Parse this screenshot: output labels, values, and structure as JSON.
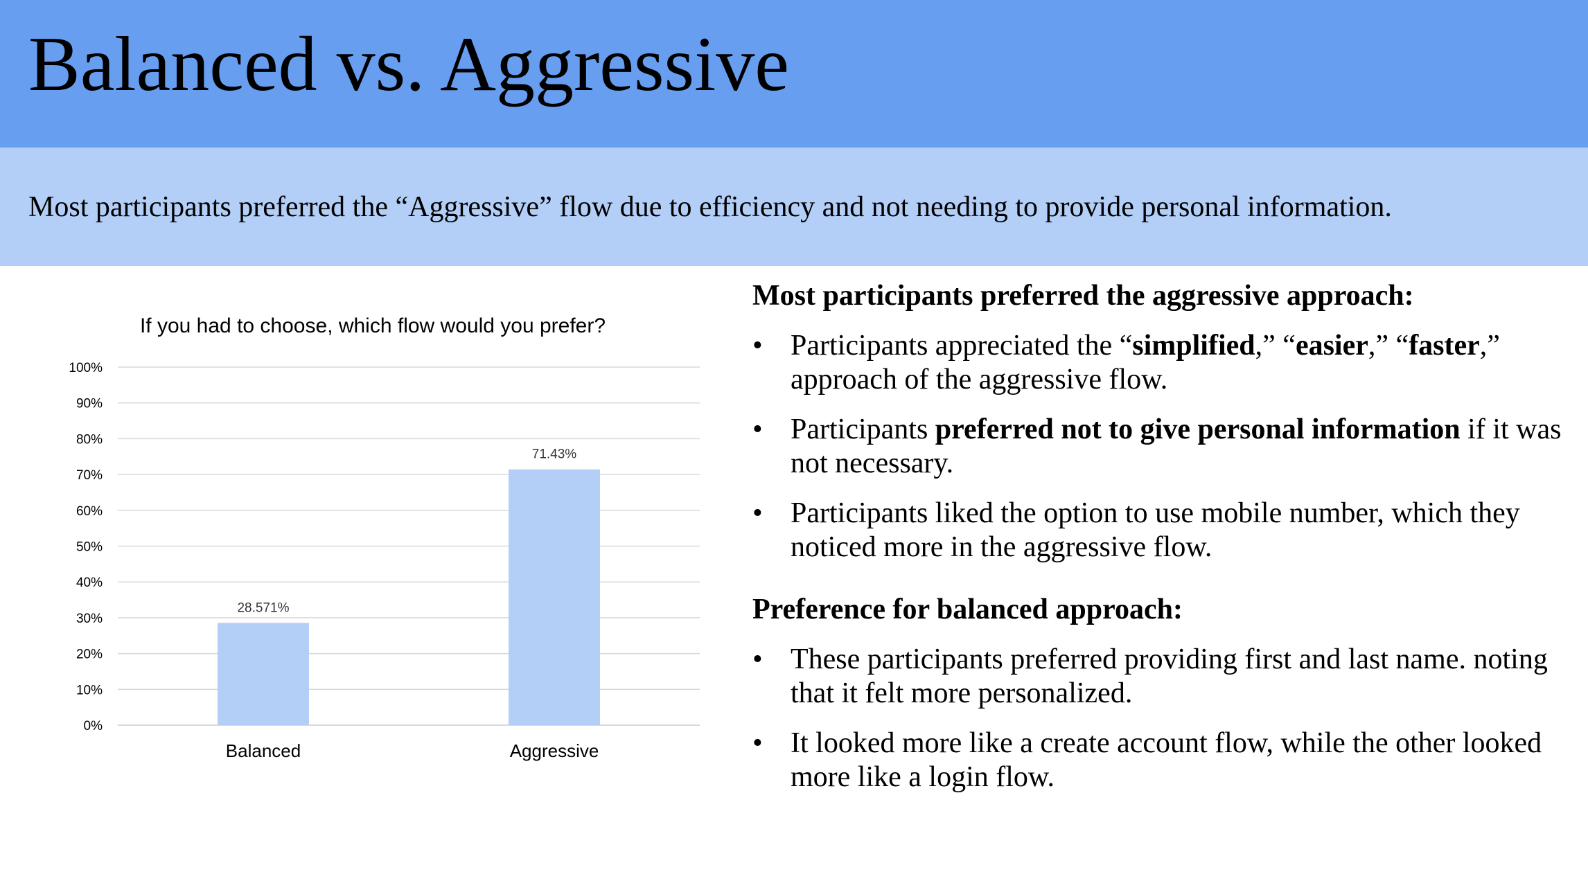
{
  "slide": {
    "title": "Balanced vs. Aggressive",
    "subtitle": "Most participants preferred the “Aggressive” flow due to efficiency and not needing to provide personal information.",
    "colors": {
      "title_band": "#679ef0",
      "subtitle_band": "#b3cff7",
      "bar": "#b3cff7",
      "gridline": "#d9d9d9"
    }
  },
  "findings": {
    "aggressive": {
      "heading": "Most participants preferred the aggressive approach:",
      "bullets": [
        [
          {
            "text": "Participants appreciated the “"
          },
          {
            "text": "simplified",
            "bold": true
          },
          {
            "text": ",” “"
          },
          {
            "text": "easier",
            "bold": true
          },
          {
            "text": ",” “"
          },
          {
            "text": "faster",
            "bold": true
          },
          {
            "text": ",” approach of the aggressive flow."
          }
        ],
        [
          {
            "text": "Participants "
          },
          {
            "text": "preferred not to give personal information",
            "bold": true
          },
          {
            "text": " if it was not necessary."
          }
        ],
        [
          {
            "text": "Participants liked the option to use mobile number, which they noticed more in the aggressive flow."
          }
        ]
      ]
    },
    "balanced": {
      "heading": "Preference for balanced approach:",
      "bullets": [
        [
          {
            "text": "These participants preferred providing first and last name. noting that it felt more personalized."
          }
        ],
        [
          {
            "text": "It looked more like a create account flow, while the other looked more like a login flow."
          }
        ]
      ]
    }
  },
  "chart_data": {
    "type": "bar",
    "title": "If you had to choose, which flow would you prefer?",
    "categories": [
      "Balanced",
      "Aggressive"
    ],
    "values": [
      28.571,
      71.43
    ],
    "data_labels": [
      "28.571%",
      "71.43%"
    ],
    "y_ticks": [
      "0%",
      "10%",
      "20%",
      "30%",
      "40%",
      "50%",
      "60%",
      "70%",
      "80%",
      "90%",
      "100%"
    ],
    "ylim": [
      0,
      100
    ],
    "xlabel": "",
    "ylabel": "",
    "grid": true,
    "legend": "none"
  }
}
